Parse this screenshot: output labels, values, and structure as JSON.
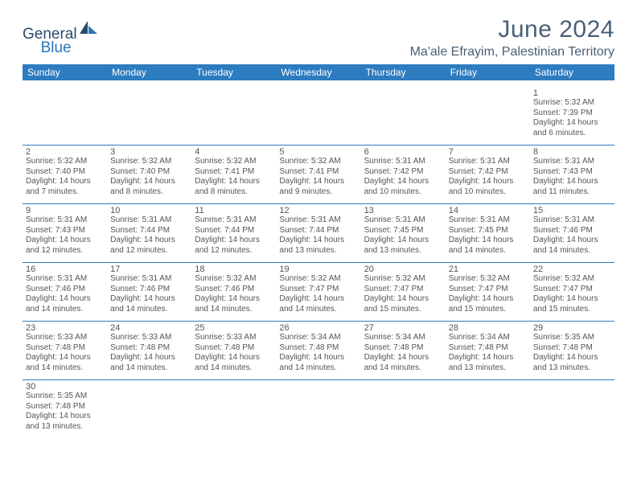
{
  "logo": {
    "text1": "General",
    "text2": "Blue"
  },
  "title": {
    "month": "June 2024",
    "location": "Ma'ale Efrayim, Palestinian Territory"
  },
  "colors": {
    "header_bg": "#2d7cc0",
    "header_text": "#ffffff",
    "title_text": "#4a6075",
    "cell_text": "#555555",
    "rule": "#2d7cc0",
    "logo_primary": "#2a4a6a",
    "logo_accent": "#2d74b8"
  },
  "typography": {
    "month_fontsize": 30,
    "location_fontsize": 16,
    "dayheader_fontsize": 12,
    "daynum_fontsize": 11,
    "body_fontsize": 10
  },
  "day_headers": [
    "Sunday",
    "Monday",
    "Tuesday",
    "Wednesday",
    "Thursday",
    "Friday",
    "Saturday"
  ],
  "weeks": [
    [
      null,
      null,
      null,
      null,
      null,
      null,
      {
        "n": "1",
        "sr": "Sunrise: 5:32 AM",
        "ss": "Sunset: 7:39 PM",
        "d1": "Daylight: 14 hours",
        "d2": "and 6 minutes."
      }
    ],
    [
      {
        "n": "2",
        "sr": "Sunrise: 5:32 AM",
        "ss": "Sunset: 7:40 PM",
        "d1": "Daylight: 14 hours",
        "d2": "and 7 minutes."
      },
      {
        "n": "3",
        "sr": "Sunrise: 5:32 AM",
        "ss": "Sunset: 7:40 PM",
        "d1": "Daylight: 14 hours",
        "d2": "and 8 minutes."
      },
      {
        "n": "4",
        "sr": "Sunrise: 5:32 AM",
        "ss": "Sunset: 7:41 PM",
        "d1": "Daylight: 14 hours",
        "d2": "and 8 minutes."
      },
      {
        "n": "5",
        "sr": "Sunrise: 5:32 AM",
        "ss": "Sunset: 7:41 PM",
        "d1": "Daylight: 14 hours",
        "d2": "and 9 minutes."
      },
      {
        "n": "6",
        "sr": "Sunrise: 5:31 AM",
        "ss": "Sunset: 7:42 PM",
        "d1": "Daylight: 14 hours",
        "d2": "and 10 minutes."
      },
      {
        "n": "7",
        "sr": "Sunrise: 5:31 AM",
        "ss": "Sunset: 7:42 PM",
        "d1": "Daylight: 14 hours",
        "d2": "and 10 minutes."
      },
      {
        "n": "8",
        "sr": "Sunrise: 5:31 AM",
        "ss": "Sunset: 7:43 PM",
        "d1": "Daylight: 14 hours",
        "d2": "and 11 minutes."
      }
    ],
    [
      {
        "n": "9",
        "sr": "Sunrise: 5:31 AM",
        "ss": "Sunset: 7:43 PM",
        "d1": "Daylight: 14 hours",
        "d2": "and 12 minutes."
      },
      {
        "n": "10",
        "sr": "Sunrise: 5:31 AM",
        "ss": "Sunset: 7:44 PM",
        "d1": "Daylight: 14 hours",
        "d2": "and 12 minutes."
      },
      {
        "n": "11",
        "sr": "Sunrise: 5:31 AM",
        "ss": "Sunset: 7:44 PM",
        "d1": "Daylight: 14 hours",
        "d2": "and 12 minutes."
      },
      {
        "n": "12",
        "sr": "Sunrise: 5:31 AM",
        "ss": "Sunset: 7:44 PM",
        "d1": "Daylight: 14 hours",
        "d2": "and 13 minutes."
      },
      {
        "n": "13",
        "sr": "Sunrise: 5:31 AM",
        "ss": "Sunset: 7:45 PM",
        "d1": "Daylight: 14 hours",
        "d2": "and 13 minutes."
      },
      {
        "n": "14",
        "sr": "Sunrise: 5:31 AM",
        "ss": "Sunset: 7:45 PM",
        "d1": "Daylight: 14 hours",
        "d2": "and 14 minutes."
      },
      {
        "n": "15",
        "sr": "Sunrise: 5:31 AM",
        "ss": "Sunset: 7:46 PM",
        "d1": "Daylight: 14 hours",
        "d2": "and 14 minutes."
      }
    ],
    [
      {
        "n": "16",
        "sr": "Sunrise: 5:31 AM",
        "ss": "Sunset: 7:46 PM",
        "d1": "Daylight: 14 hours",
        "d2": "and 14 minutes."
      },
      {
        "n": "17",
        "sr": "Sunrise: 5:31 AM",
        "ss": "Sunset: 7:46 PM",
        "d1": "Daylight: 14 hours",
        "d2": "and 14 minutes."
      },
      {
        "n": "18",
        "sr": "Sunrise: 5:32 AM",
        "ss": "Sunset: 7:46 PM",
        "d1": "Daylight: 14 hours",
        "d2": "and 14 minutes."
      },
      {
        "n": "19",
        "sr": "Sunrise: 5:32 AM",
        "ss": "Sunset: 7:47 PM",
        "d1": "Daylight: 14 hours",
        "d2": "and 14 minutes."
      },
      {
        "n": "20",
        "sr": "Sunrise: 5:32 AM",
        "ss": "Sunset: 7:47 PM",
        "d1": "Daylight: 14 hours",
        "d2": "and 15 minutes."
      },
      {
        "n": "21",
        "sr": "Sunrise: 5:32 AM",
        "ss": "Sunset: 7:47 PM",
        "d1": "Daylight: 14 hours",
        "d2": "and 15 minutes."
      },
      {
        "n": "22",
        "sr": "Sunrise: 5:32 AM",
        "ss": "Sunset: 7:47 PM",
        "d1": "Daylight: 14 hours",
        "d2": "and 15 minutes."
      }
    ],
    [
      {
        "n": "23",
        "sr": "Sunrise: 5:33 AM",
        "ss": "Sunset: 7:48 PM",
        "d1": "Daylight: 14 hours",
        "d2": "and 14 minutes."
      },
      {
        "n": "24",
        "sr": "Sunrise: 5:33 AM",
        "ss": "Sunset: 7:48 PM",
        "d1": "Daylight: 14 hours",
        "d2": "and 14 minutes."
      },
      {
        "n": "25",
        "sr": "Sunrise: 5:33 AM",
        "ss": "Sunset: 7:48 PM",
        "d1": "Daylight: 14 hours",
        "d2": "and 14 minutes."
      },
      {
        "n": "26",
        "sr": "Sunrise: 5:34 AM",
        "ss": "Sunset: 7:48 PM",
        "d1": "Daylight: 14 hours",
        "d2": "and 14 minutes."
      },
      {
        "n": "27",
        "sr": "Sunrise: 5:34 AM",
        "ss": "Sunset: 7:48 PM",
        "d1": "Daylight: 14 hours",
        "d2": "and 14 minutes."
      },
      {
        "n": "28",
        "sr": "Sunrise: 5:34 AM",
        "ss": "Sunset: 7:48 PM",
        "d1": "Daylight: 14 hours",
        "d2": "and 13 minutes."
      },
      {
        "n": "29",
        "sr": "Sunrise: 5:35 AM",
        "ss": "Sunset: 7:48 PM",
        "d1": "Daylight: 14 hours",
        "d2": "and 13 minutes."
      }
    ],
    [
      {
        "n": "30",
        "sr": "Sunrise: 5:35 AM",
        "ss": "Sunset: 7:48 PM",
        "d1": "Daylight: 14 hours",
        "d2": "and 13 minutes."
      },
      null,
      null,
      null,
      null,
      null,
      null
    ]
  ]
}
